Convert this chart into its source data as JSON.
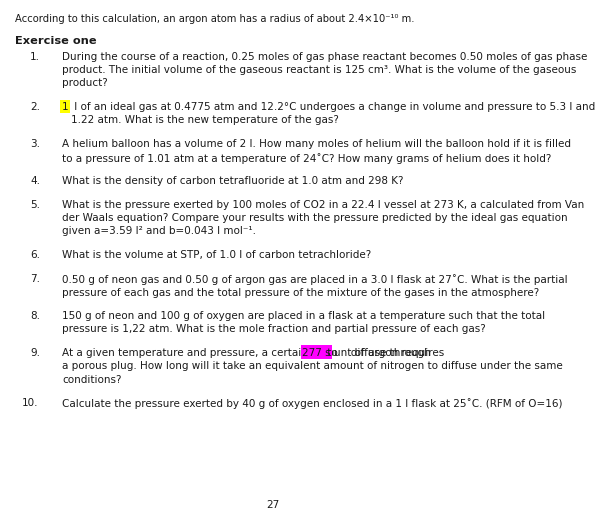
{
  "bg_color": "#ffffff",
  "text_color": "#1a1a1a",
  "font_size": 7.5,
  "title_font_size": 8.2,
  "top_text": "According to this calculation, an argon atom has a radius of about 2.4×10⁻¹⁰ m.",
  "title": "Exercise one",
  "q1": "During the course of a reaction, 0.25 moles of gas phase reactant becomes 0.50 moles of gas phase\nproduct. The initial volume of the gaseous reactant is 125 cm³. What is the volume of the gaseous\nproduct?",
  "q2_pre": "1",
  "q2_post": " l of an ideal gas at 0.4775 atm and 12.2°C undergoes a change in volume and pressure to 5.3 l and\n1.22 atm. What is the new temperature of the gas?",
  "q3": "A helium balloon has a volume of 2 l. How many moles of helium will the balloon hold if it is filled\nto a pressure of 1.01 atm at a temperature of 24˚C? How many grams of helium does it hold?",
  "q4": "What is the density of carbon tetrafluoride at 1.0 atm and 298 K?",
  "q5": "What is the pressure exerted by 100 moles of CO2 in a 22.4 l vessel at 273 K, a calculated from Van\nder Waals equation? Compare your results with the pressure predicted by the ideal gas equation\ngiven a=3.59 l² and b=0.043 l mol⁻¹.",
  "q6": "What is the volume at STP, of 1.0 l of carbon tetrachloride?",
  "q7": "0.50 g of neon gas and 0.50 g of argon gas are placed in a 3.0 l flask at 27˚C. What is the partial\npressure of each gas and the total pressure of the mixture of the gases in the atmosphere?",
  "q8": "150 g of neon and 100 g of oxygen are placed in a flask at a temperature such that the total\npressure is 1,22 atm. What is the mole fraction and partial pressure of each gas?",
  "q9_pre": "At a given temperature and pressure, a certain amount of argon requires ",
  "q9_hl": "277 s",
  "q9_post": " to    diffuse through\na porous plug. How long will it take an equivalent amount of nitrogen to diffuse under the same\nconditions?",
  "q10": "Calculate the pressure exerted by 40 g of oxygen enclosed in a 1 l flask at 25˚C. (RFM of O=16)",
  "page_num": "27"
}
